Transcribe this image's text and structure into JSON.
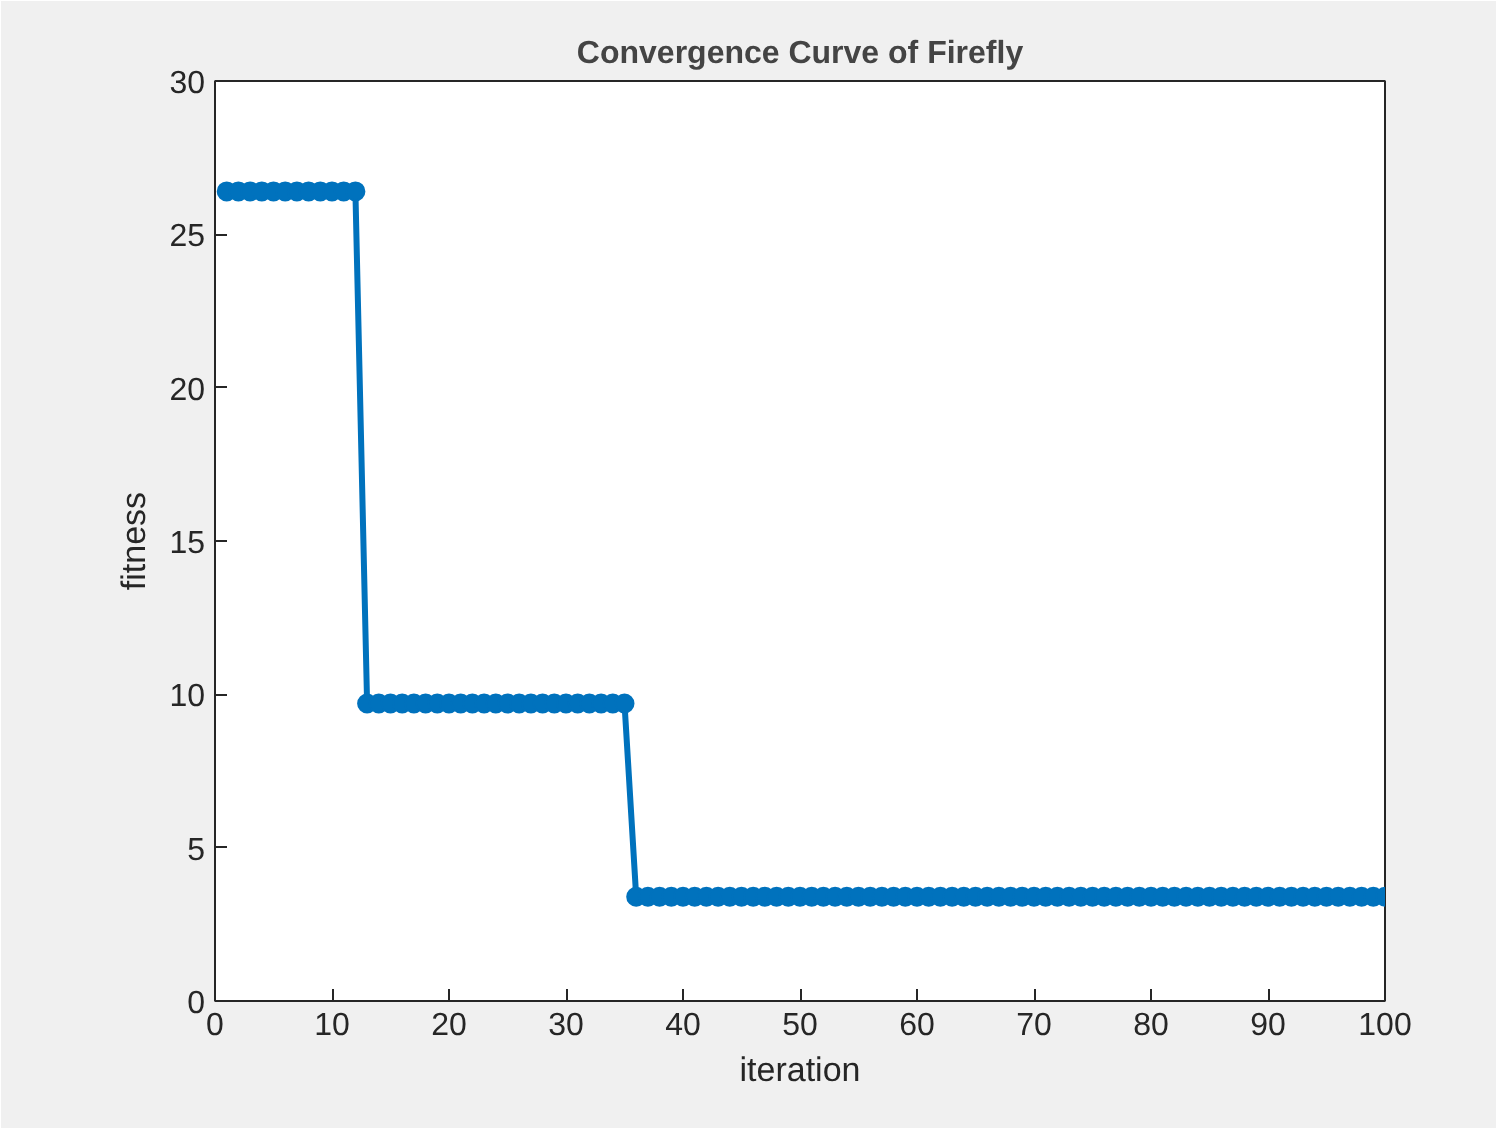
{
  "chart_data": {
    "type": "line",
    "title": "Convergence Curve of Firefly",
    "xlabel": "iteration",
    "ylabel": "fitness",
    "x": [
      1,
      2,
      3,
      4,
      5,
      6,
      7,
      8,
      9,
      10,
      11,
      12,
      13,
      14,
      15,
      16,
      17,
      18,
      19,
      20,
      21,
      22,
      23,
      24,
      25,
      26,
      27,
      28,
      29,
      30,
      31,
      32,
      33,
      34,
      35,
      36,
      37,
      38,
      39,
      40,
      41,
      42,
      43,
      44,
      45,
      46,
      47,
      48,
      49,
      50,
      51,
      52,
      53,
      54,
      55,
      56,
      57,
      58,
      59,
      60,
      61,
      62,
      63,
      64,
      65,
      66,
      67,
      68,
      69,
      70,
      71,
      72,
      73,
      74,
      75,
      76,
      77,
      78,
      79,
      80,
      81,
      82,
      83,
      84,
      85,
      86,
      87,
      88,
      89,
      90,
      91,
      92,
      93,
      94,
      95,
      96,
      97,
      98,
      99,
      100
    ],
    "series": [
      {
        "color": "#0072bd",
        "values": [
          26.4,
          26.4,
          26.4,
          26.4,
          26.4,
          26.4,
          26.4,
          26.4,
          26.4,
          26.4,
          26.4,
          26.4,
          9.7,
          9.7,
          9.7,
          9.7,
          9.7,
          9.7,
          9.7,
          9.7,
          9.7,
          9.7,
          9.7,
          9.7,
          9.7,
          9.7,
          9.7,
          9.7,
          9.7,
          9.7,
          9.7,
          9.7,
          9.7,
          9.7,
          9.7,
          3.4,
          3.4,
          3.4,
          3.4,
          3.4,
          3.4,
          3.4,
          3.4,
          3.4,
          3.4,
          3.4,
          3.4,
          3.4,
          3.4,
          3.4,
          3.4,
          3.4,
          3.4,
          3.4,
          3.4,
          3.4,
          3.4,
          3.4,
          3.4,
          3.4,
          3.4,
          3.4,
          3.4,
          3.4,
          3.4,
          3.4,
          3.4,
          3.4,
          3.4,
          3.4,
          3.4,
          3.4,
          3.4,
          3.4,
          3.4,
          3.4,
          3.4,
          3.4,
          3.4,
          3.4,
          3.4,
          3.4,
          3.4,
          3.4,
          3.4,
          3.4,
          3.4,
          3.4,
          3.4,
          3.4,
          3.4,
          3.4,
          3.4,
          3.4,
          3.4,
          3.4,
          3.4,
          3.4,
          3.4,
          3.4
        ]
      }
    ],
    "xlim": [
      0,
      100
    ],
    "xticks": [
      0,
      10,
      20,
      30,
      40,
      50,
      60,
      70,
      80,
      90,
      100
    ],
    "ylim": [
      0,
      30
    ],
    "yticks": [
      0,
      5,
      10,
      15,
      20,
      25,
      30
    ],
    "grid": false,
    "marker": "circle",
    "line_style": "solid"
  }
}
